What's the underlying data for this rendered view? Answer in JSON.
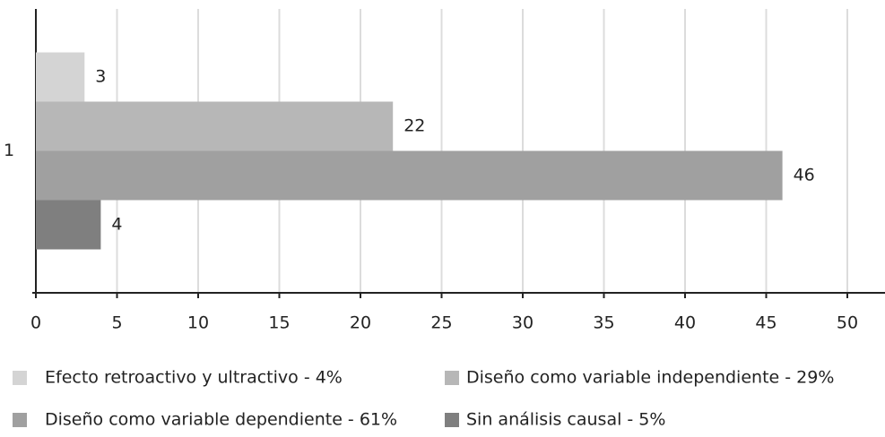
{
  "chart_data": {
    "type": "bar",
    "orientation": "horizontal",
    "categories": [
      "1"
    ],
    "series": [
      {
        "name": "Efecto retroactivo y ultractivo - 4%",
        "color": "#d4d4d4",
        "values": [
          3
        ]
      },
      {
        "name": "Diseño como variable independiente - 29%",
        "color": "#b7b7b7",
        "values": [
          22
        ]
      },
      {
        "name": "Diseño como variable dependiente - 61%",
        "color": "#a0a0a0",
        "values": [
          46
        ]
      },
      {
        "name": "Sin análisis causal - 5%",
        "color": "#7f7f7f",
        "values": [
          4
        ]
      }
    ],
    "xlim": [
      0,
      50
    ],
    "xticks": [
      0,
      5,
      10,
      15,
      20,
      25,
      30,
      35,
      40,
      45,
      50
    ],
    "grid": true,
    "legend": "bottom"
  }
}
